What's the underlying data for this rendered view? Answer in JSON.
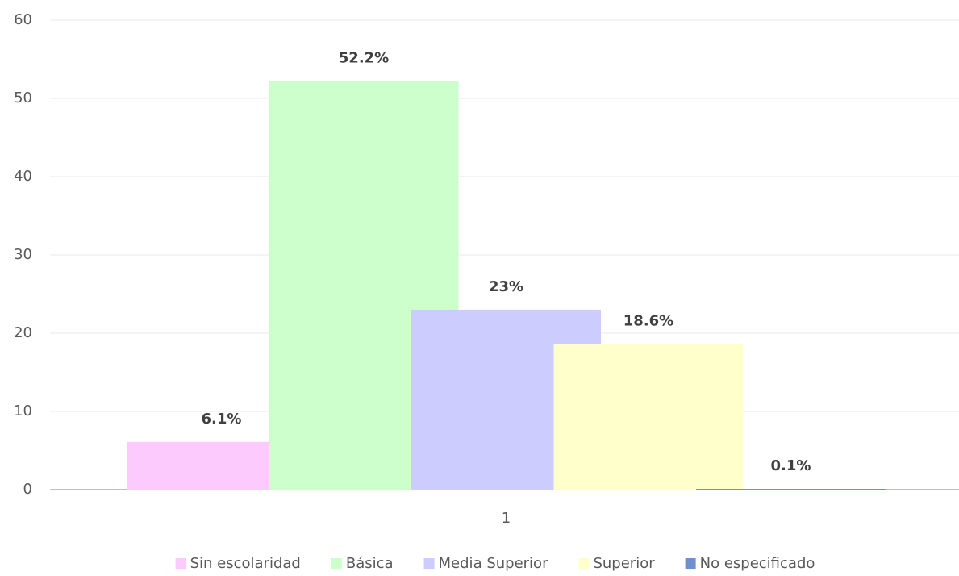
{
  "chart_data": {
    "type": "bar",
    "categories": [
      "1"
    ],
    "series": [
      {
        "name": "Sin escolaridad",
        "color": "#fccafc",
        "values": [
          6.1
        ],
        "value_labels": [
          "6.1%"
        ]
      },
      {
        "name": "Básica",
        "color": "#ccffcc",
        "values": [
          52.2
        ],
        "value_labels": [
          "52.2%"
        ]
      },
      {
        "name": "Media Superior",
        "color": "#ccccff",
        "values": [
          23
        ],
        "value_labels": [
          "23%"
        ]
      },
      {
        "name": "Superior",
        "color": "#ffffcc",
        "values": [
          18.6
        ],
        "value_labels": [
          "18.6%"
        ]
      },
      {
        "name": "No especificado",
        "color": "#6f8fcf",
        "values": [
          0.1
        ],
        "value_labels": [
          "0.1%"
        ]
      }
    ],
    "ylim": [
      0,
      60
    ],
    "yticks": [
      0,
      10,
      20,
      30,
      40,
      50,
      60
    ],
    "grid": true,
    "legend": "bottom"
  }
}
